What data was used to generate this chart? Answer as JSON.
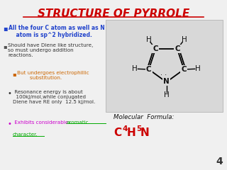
{
  "title": "STRUCTURE OF PYRROLE",
  "title_color": "#cc0000",
  "background_color": "#f0f0f0",
  "slide_number": "4",
  "bullet1_color": "#2244cc",
  "bullet2_color": "#333333",
  "bullet3_color": "#cc6600",
  "bullet4_color": "#333333",
  "bullet5_prefix_color": "#cc00cc",
  "bullet5_link_color": "#00aa00",
  "mol_formula_label": "Molecular  Formula:",
  "mol_formula_label_color": "#111111",
  "mol_formula": "C4H5N",
  "mol_formula_color": "#cc0000",
  "ring_bg": "#d8d8d8"
}
